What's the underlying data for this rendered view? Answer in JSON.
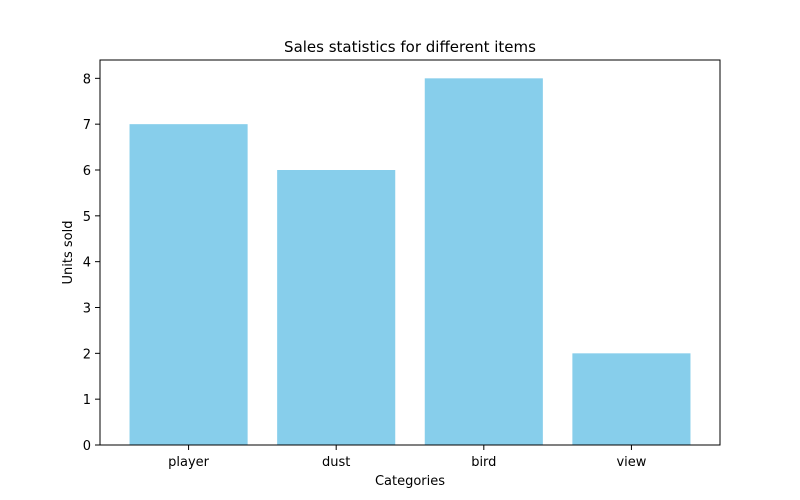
{
  "chart_data": {
    "type": "bar",
    "title": "Sales statistics for different items",
    "xlabel": "Categories",
    "ylabel": "Units sold",
    "categories": [
      "player",
      "dust",
      "bird",
      "view"
    ],
    "values": [
      7,
      6,
      8,
      2
    ],
    "ylim": [
      0,
      8.4
    ],
    "yticks": [
      "0",
      "1",
      "2",
      "3",
      "4",
      "5",
      "6",
      "7",
      "8"
    ],
    "bar_color": "#87ceeb",
    "grid": false,
    "legend": false
  }
}
